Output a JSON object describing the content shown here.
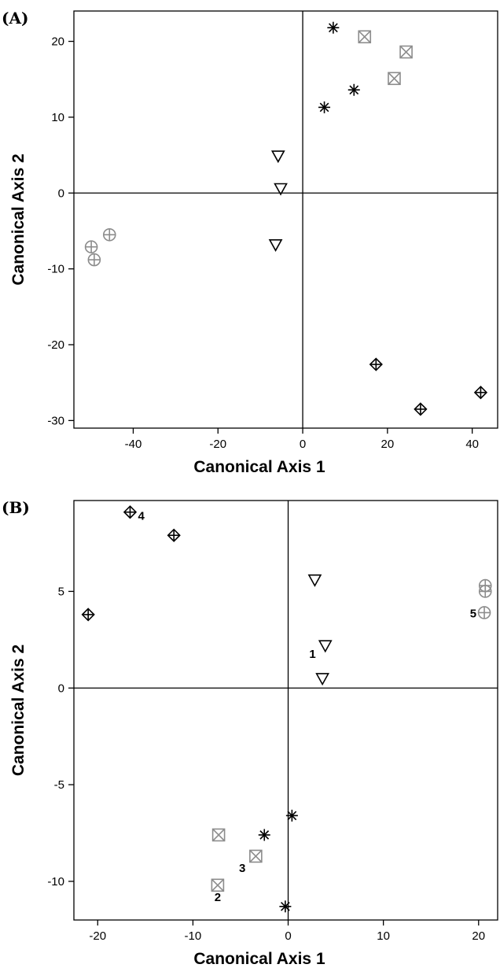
{
  "chart_data": [
    {
      "type": "scatter",
      "panel_label": "(A)",
      "xlabel": "Canonical Axis  1",
      "ylabel": "Canonical Axis  2",
      "xlim": [
        -54,
        46
      ],
      "ylim": [
        -31,
        24
      ],
      "xticks": [
        -40,
        -20,
        0,
        20,
        40
      ],
      "yticks": [
        -30,
        -20,
        -10,
        0,
        10,
        20
      ],
      "reference_lines": {
        "x": 0,
        "y": 0
      },
      "grid": false,
      "legend": "none",
      "series": [
        {
          "marker": "circle-plus",
          "color": "#8c8c8c",
          "points": [
            [
              -49.9,
              -7.1
            ],
            [
              -49.2,
              -8.8
            ],
            [
              -45.6,
              -5.5
            ]
          ]
        },
        {
          "marker": "triangle-down",
          "color": "#000000",
          "points": [
            [
              -5.8,
              4.9
            ],
            [
              -5.2,
              0.6
            ],
            [
              -6.4,
              -6.8
            ]
          ]
        },
        {
          "marker": "asterisk",
          "color": "#000000",
          "points": [
            [
              7.2,
              21.8
            ],
            [
              12.1,
              13.6
            ],
            [
              5.1,
              11.3
            ]
          ]
        },
        {
          "marker": "box-x",
          "color": "#8c8c8c",
          "points": [
            [
              14.6,
              20.6
            ],
            [
              24.4,
              18.6
            ],
            [
              21.6,
              15.1
            ]
          ]
        },
        {
          "marker": "diamond-plus",
          "color": "#000000",
          "points": [
            [
              17.3,
              -22.6
            ],
            [
              27.8,
              -28.5
            ],
            [
              42.0,
              -26.3
            ]
          ]
        }
      ]
    },
    {
      "type": "scatter",
      "panel_label": "(B)",
      "xlabel": "Canonical Axis  1",
      "ylabel": "Canonical Axis  2",
      "xlim": [
        -22.5,
        22
      ],
      "ylim": [
        -12,
        9.7
      ],
      "xticks": [
        -20,
        -10,
        0,
        10,
        20
      ],
      "yticks": [
        -10,
        -5,
        0,
        5
      ],
      "reference_lines": {
        "x": 0,
        "y": 0
      },
      "grid": false,
      "legend": "none",
      "series": [
        {
          "marker": "diamond-plus",
          "color": "#000000",
          "points": [
            [
              -16.6,
              9.1
            ],
            [
              -12.0,
              7.9
            ],
            [
              -21.0,
              3.8
            ]
          ],
          "labels": [
            "4",
            "",
            ""
          ]
        },
        {
          "marker": "triangle-down",
          "color": "#000000",
          "points": [
            [
              2.8,
              5.6
            ],
            [
              3.9,
              2.2
            ],
            [
              3.6,
              0.5
            ]
          ],
          "labels": [
            "",
            "1",
            ""
          ]
        },
        {
          "marker": "circle-plus",
          "color": "#8c8c8c",
          "points": [
            [
              20.7,
              5.3
            ],
            [
              20.7,
              5.0
            ],
            [
              20.6,
              3.9
            ]
          ],
          "labels": [
            "",
            "",
            "5"
          ]
        },
        {
          "marker": "asterisk",
          "color": "#000000",
          "points": [
            [
              0.4,
              -6.6
            ],
            [
              -2.5,
              -7.6
            ],
            [
              -0.3,
              -11.3
            ]
          ],
          "labels": [
            "",
            "",
            ""
          ]
        },
        {
          "marker": "box-x",
          "color": "#8c8c8c",
          "points": [
            [
              -7.3,
              -7.6
            ],
            [
              -3.4,
              -8.7
            ],
            [
              -7.4,
              -10.2
            ]
          ],
          "labels": [
            "",
            "3",
            "2"
          ]
        }
      ]
    }
  ]
}
